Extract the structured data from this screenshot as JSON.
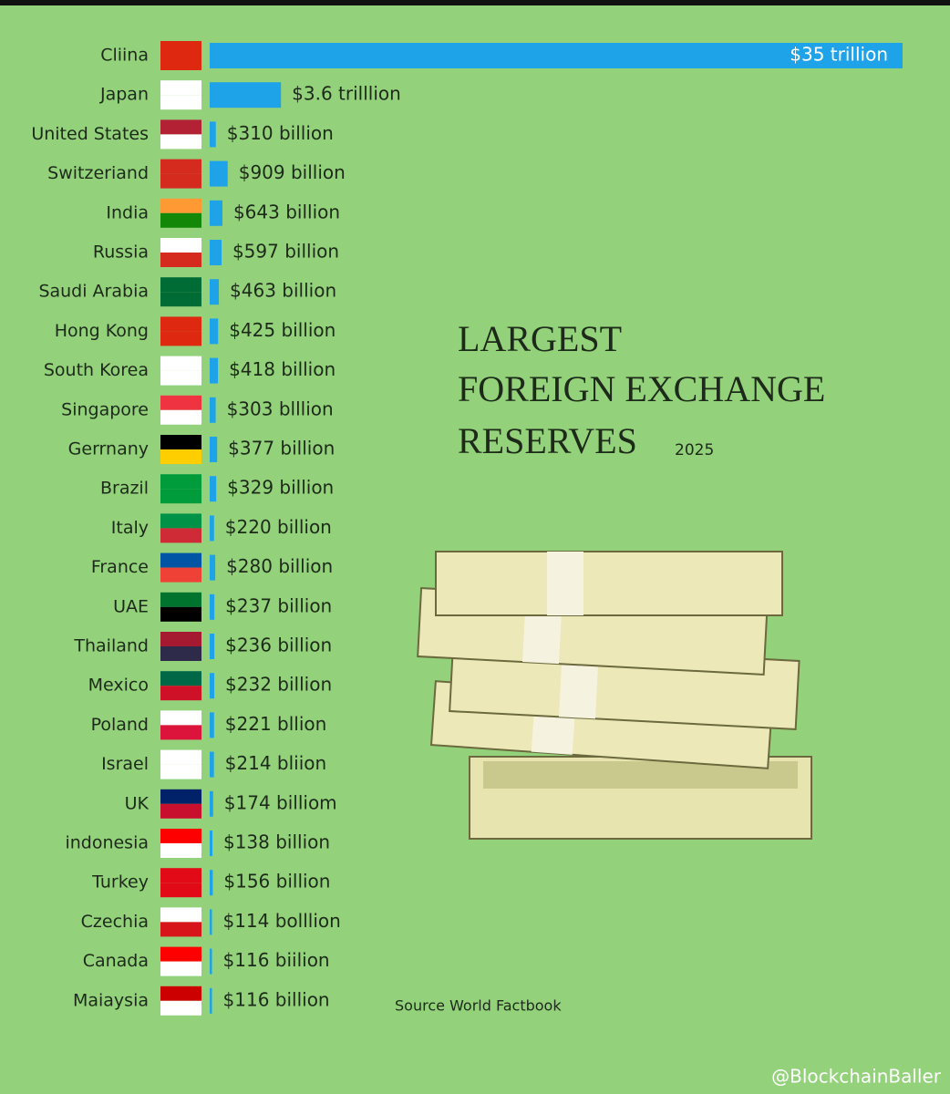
{
  "chart_data": {
    "type": "bar",
    "orientation": "horizontal",
    "title": [
      "LARGEST",
      "FOREIGN EXCHANGE",
      "RESERVES"
    ],
    "subtitle": "2025",
    "categories": [
      "Cliina",
      "Japan",
      "United States",
      "Switzeriand",
      "India",
      "Russia",
      "Saudi Arabia",
      "Hong Kong",
      "South Korea",
      "Singapore",
      "Gerrnany",
      "Brazil",
      "Italy",
      "France",
      "UAE",
      "Thailand",
      "Mexico",
      "Poland",
      "Israel",
      "UK",
      "indonesia",
      "Turkey",
      "Czechia",
      "Canada",
      "Maiaysia"
    ],
    "values": [
      35000,
      3600,
      310,
      909,
      643,
      597,
      463,
      425,
      418,
      303,
      377,
      329,
      220,
      280,
      237,
      236,
      232,
      221,
      214,
      174,
      138,
      156,
      114,
      116,
      116
    ],
    "value_labels": [
      "$35 trillion",
      "$3.6 trilllion",
      "$310 billion",
      "$909 billion",
      "$643 billion",
      "$597 billion",
      "$463 billion",
      "$425 billion",
      "$418 billion",
      "$303 blllion",
      "$377 billion",
      "$329 billion",
      "$220 billion",
      "$280 billion",
      "$237 billion",
      "$236 billion",
      "$232 billion",
      "$221 bllion",
      "$214 bliion",
      "$174 billiom",
      "$138 billion",
      "$156 billion",
      "$114 bolllion",
      "$116 biilion",
      "$116 billion"
    ],
    "color": "#1fa3e8",
    "xlim": [
      0,
      35000
    ],
    "source": "Source  World Factbook"
  },
  "watermark": "@BlockchainBaller"
}
